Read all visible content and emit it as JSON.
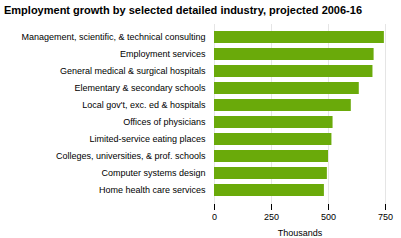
{
  "chart_data": {
    "type": "bar",
    "orientation": "horizontal",
    "title": "Employment growth by selected detailed industry, projected 2006-16",
    "categories": [
      "Management, scientific, & technical consulting",
      "Employment services",
      "General medical & surgical hospitals",
      "Elementary & secondary schools",
      "Local gov't, exc. ed & hospitals",
      "Offices of physicians",
      "Limited-service eating places",
      "Colleges, universities, & prof. schools",
      "Computer systems design",
      "Home health care services"
    ],
    "values": [
      745,
      700,
      695,
      635,
      600,
      520,
      515,
      500,
      495,
      482
    ],
    "color": "#6aaa0a",
    "xlabel": "Thousands",
    "xlim": [
      0,
      750
    ],
    "xticks": [
      0,
      250,
      500,
      750
    ],
    "grid": true
  }
}
